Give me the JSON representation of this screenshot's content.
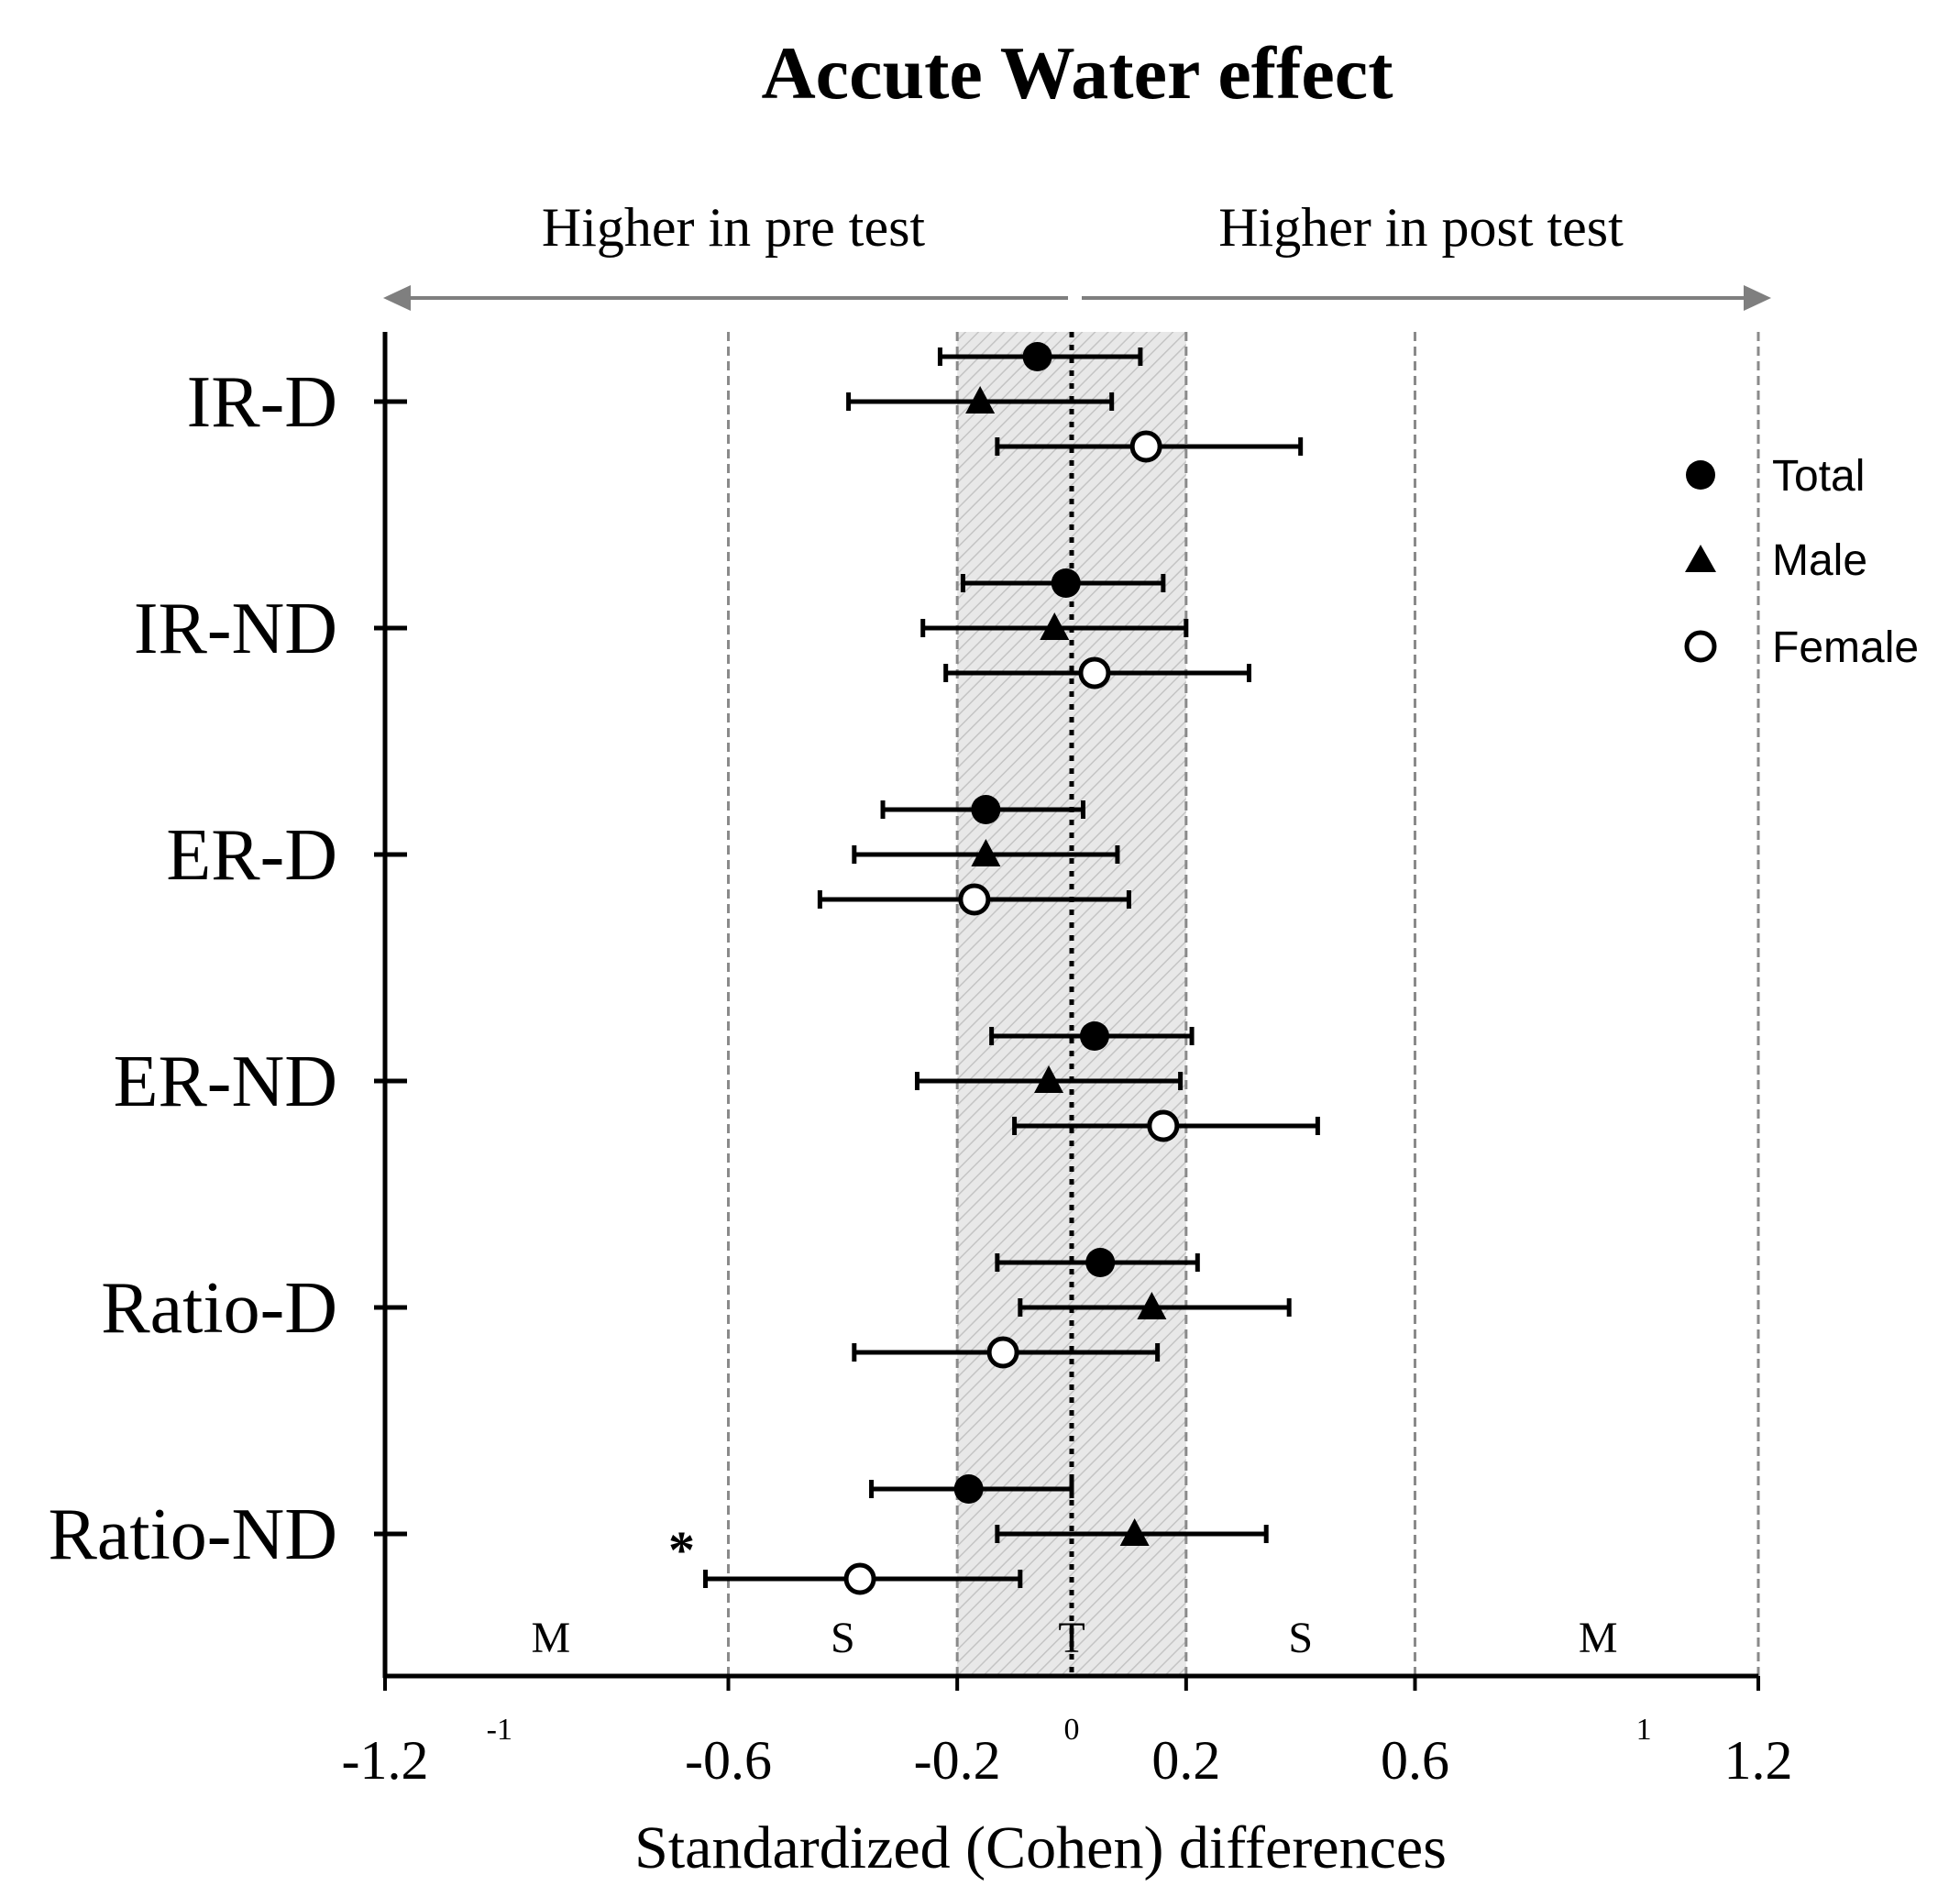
{
  "chart_data": {
    "type": "forest",
    "title": "Accute Water effect",
    "xlabel": "Standardized (Cohen) differences",
    "xlim": [
      -1.2,
      1.2
    ],
    "x_ticks": [
      -1.2,
      -0.6,
      -0.2,
      0.2,
      0.6,
      1.2
    ],
    "x_tick_labels": [
      "-1.2",
      "-0.6",
      "-0.2",
      "0.2",
      "0.6",
      "1.2"
    ],
    "minor_ticks": [
      {
        "value": -1,
        "label": "-1"
      },
      {
        "value": 0,
        "label": "0"
      },
      {
        "value": 1,
        "label": "1"
      }
    ],
    "direction_labels": {
      "left": "Higher in pre test",
      "right": "Higher in post test"
    },
    "magnitude_zones": [
      {
        "label": "M",
        "from": -1.2,
        "to": -0.6
      },
      {
        "label": "S",
        "from": -0.6,
        "to": -0.2
      },
      {
        "label": "T",
        "from": -0.2,
        "to": 0.2
      },
      {
        "label": "S",
        "from": 0.2,
        "to": 0.6
      },
      {
        "label": "M",
        "from": 0.6,
        "to": 1.2
      }
    ],
    "trivial_band": [
      -0.2,
      0.2
    ],
    "zone_boundaries": [
      -0.6,
      -0.2,
      0.2,
      0.6,
      1.2
    ],
    "categories": [
      "IR-D",
      "IR-ND",
      "ER-D",
      "ER-ND",
      "Ratio-D",
      "Ratio-ND"
    ],
    "legend": {
      "position": "top-right",
      "entries": [
        "Total",
        "Male",
        "Female"
      ]
    },
    "series": [
      {
        "name": "Total",
        "marker": "filled-circle",
        "points": [
          {
            "category": "IR-D",
            "value": -0.06,
            "low": -0.23,
            "high": 0.12
          },
          {
            "category": "IR-ND",
            "value": -0.01,
            "low": -0.19,
            "high": 0.16
          },
          {
            "category": "ER-D",
            "value": -0.15,
            "low": -0.33,
            "high": 0.02
          },
          {
            "category": "ER-ND",
            "value": 0.04,
            "low": -0.14,
            "high": 0.21
          },
          {
            "category": "Ratio-D",
            "value": 0.05,
            "low": -0.13,
            "high": 0.22
          },
          {
            "category": "Ratio-ND",
            "value": -0.18,
            "low": -0.35,
            "high": 0.0
          }
        ]
      },
      {
        "name": "Male",
        "marker": "filled-triangle",
        "points": [
          {
            "category": "IR-D",
            "value": -0.16,
            "low": -0.39,
            "high": 0.07
          },
          {
            "category": "IR-ND",
            "value": -0.03,
            "low": -0.26,
            "high": 0.2
          },
          {
            "category": "ER-D",
            "value": -0.15,
            "low": -0.38,
            "high": 0.08
          },
          {
            "category": "ER-ND",
            "value": -0.04,
            "low": -0.27,
            "high": 0.19
          },
          {
            "category": "Ratio-D",
            "value": 0.14,
            "low": -0.09,
            "high": 0.38
          },
          {
            "category": "Ratio-ND",
            "value": 0.11,
            "low": -0.13,
            "high": 0.34
          }
        ]
      },
      {
        "name": "Female",
        "marker": "open-circle",
        "points": [
          {
            "category": "IR-D",
            "value": 0.13,
            "low": -0.13,
            "high": 0.4
          },
          {
            "category": "IR-ND",
            "value": 0.04,
            "low": -0.22,
            "high": 0.31
          },
          {
            "category": "ER-D",
            "value": -0.17,
            "low": -0.44,
            "high": 0.1
          },
          {
            "category": "ER-ND",
            "value": 0.16,
            "low": -0.1,
            "high": 0.43
          },
          {
            "category": "Ratio-D",
            "value": -0.12,
            "low": -0.38,
            "high": 0.15
          },
          {
            "category": "Ratio-ND",
            "value": -0.37,
            "low": -0.64,
            "high": -0.09
          }
        ]
      }
    ],
    "annotations": [
      {
        "text": "*",
        "category": "Ratio-ND",
        "series": "Female"
      }
    ]
  }
}
